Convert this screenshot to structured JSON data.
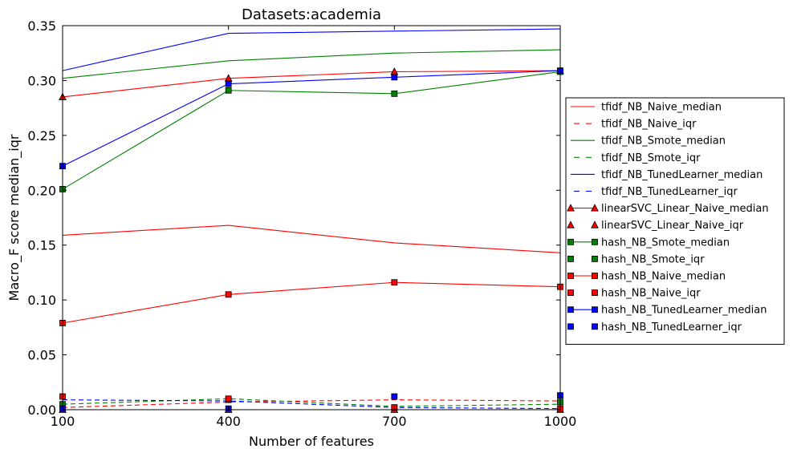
{
  "chart_data": {
    "type": "line",
    "title": "Datasets:academia",
    "xlabel": "Number of features",
    "ylabel": "Macro_F score median_iqr",
    "x": [
      100,
      400,
      700,
      1000
    ],
    "xlim": [
      100,
      1000
    ],
    "ylim": [
      0,
      0.35
    ],
    "xticks": [
      "100",
      "400",
      "700",
      "1000"
    ],
    "yticks": [
      "0.00",
      "0.05",
      "0.10",
      "0.15",
      "0.20",
      "0.25",
      "0.30",
      "0.35"
    ],
    "grid": false,
    "legend_position": "right, outside plot",
    "series": [
      {
        "name": "tfidf_NB_Naive_median",
        "color": "#ff0000",
        "dash": "solid",
        "marker": "none",
        "values": [
          0.159,
          0.168,
          0.152,
          0.143
        ]
      },
      {
        "name": "tfidf_NB_Naive_iqr",
        "color": "#ff0000",
        "dash": "dashed",
        "marker": "none",
        "values": [
          0.002,
          0.007,
          0.009,
          0.008
        ]
      },
      {
        "name": "tfidf_NB_Smote_median",
        "color": "#008000",
        "dash": "solid",
        "marker": "none",
        "values": [
          0.302,
          0.318,
          0.325,
          0.328
        ]
      },
      {
        "name": "tfidf_NB_Smote_iqr",
        "color": "#008000",
        "dash": "dashed",
        "marker": "none",
        "values": [
          0.005,
          0.01,
          0.003,
          0.005
        ]
      },
      {
        "name": "tfidf_NB_TunedLearner_median",
        "color": "#0000ff",
        "dash": "solid",
        "marker": "none",
        "values": [
          0.309,
          0.343,
          0.345,
          0.347
        ]
      },
      {
        "name": "tfidf_NB_TunedLearner_iqr",
        "color": "#0000ff",
        "dash": "dashed",
        "marker": "none",
        "values": [
          0.009,
          0.008,
          0.002,
          0.001
        ]
      },
      {
        "name": "linearSVC_Linear_Naive_median",
        "color": "#ff0000",
        "dash": "solid",
        "marker": "triangle",
        "values": [
          0.285,
          0.302,
          0.308,
          0.309
        ]
      },
      {
        "name": "linearSVC_Linear_Naive_iqr",
        "color": "#ff0000",
        "dash": "none",
        "marker": "triangle",
        "values": [
          0.0,
          0.0,
          0.0,
          0.0
        ]
      },
      {
        "name": "hash_NB_Smote_median",
        "color": "#008000",
        "dash": "solid",
        "marker": "square",
        "values": [
          0.201,
          0.291,
          0.288,
          0.308
        ]
      },
      {
        "name": "hash_NB_Smote_iqr",
        "color": "#008000",
        "dash": "none",
        "marker": "square",
        "values": [
          0.005,
          0.009,
          0.002,
          0.007
        ]
      },
      {
        "name": "hash_NB_Naive_median",
        "color": "#ff0000",
        "dash": "solid",
        "marker": "square",
        "values": [
          0.079,
          0.105,
          0.116,
          0.112
        ]
      },
      {
        "name": "hash_NB_Naive_iqr",
        "color": "#ff0000",
        "dash": "none",
        "marker": "square",
        "values": [
          0.012,
          0.01,
          0.002,
          0.001
        ]
      },
      {
        "name": "hash_NB_TunedLearner_median",
        "color": "#0000ff",
        "dash": "solid",
        "marker": "square",
        "values": [
          0.222,
          0.297,
          0.303,
          0.309
        ]
      },
      {
        "name": "hash_NB_TunedLearner_iqr",
        "color": "#0000ff",
        "dash": "none",
        "marker": "square",
        "values": [
          0.001,
          0.001,
          0.012,
          0.013
        ]
      }
    ]
  }
}
